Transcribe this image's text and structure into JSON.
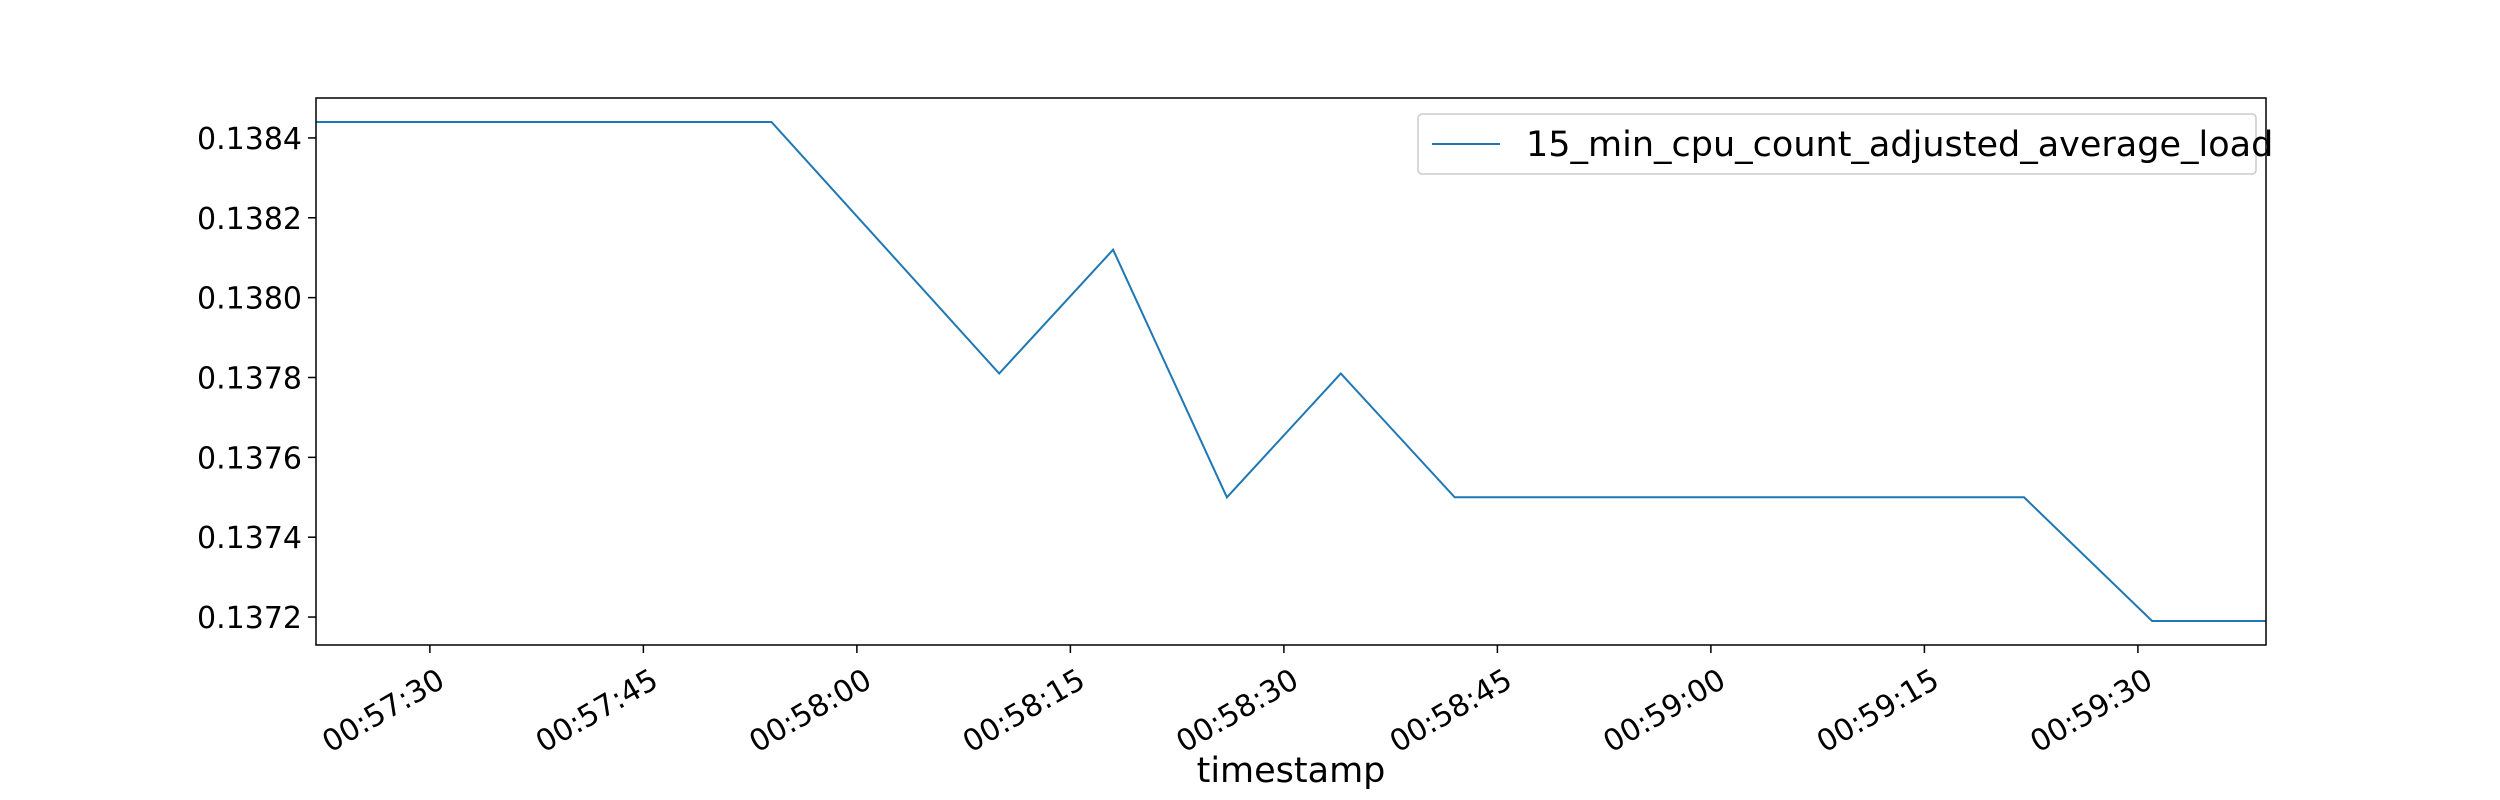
{
  "chart_data": {
    "type": "line",
    "title": "",
    "xlabel": "timestamp",
    "ylabel": "",
    "xlim": [
      "00:57:22",
      "00:59:39"
    ],
    "ylim": [
      0.13713,
      0.1385
    ],
    "x_ticks": [
      "00:57:30",
      "00:57:45",
      "00:58:00",
      "00:58:15",
      "00:58:30",
      "00:58:45",
      "00:59:00",
      "00:59:15",
      "00:59:30"
    ],
    "y_ticks": [
      "0.1372",
      "0.1374",
      "0.1376",
      "0.1378",
      "0.1380",
      "0.1382",
      "0.1384"
    ],
    "legend_position": "top-right",
    "grid": false,
    "series": [
      {
        "name": "15_min_cpu_count_adjusted_average_load",
        "color": "#1f77b4",
        "x": [
          "00:57:22",
          "00:57:54",
          "00:58:10",
          "00:58:18",
          "00:58:26",
          "00:58:34",
          "00:58:42",
          "00:59:22",
          "00:59:31",
          "00:59:39"
        ],
        "y": [
          0.13844,
          0.13844,
          0.13781,
          0.13812,
          0.1375,
          0.13781,
          0.1375,
          0.1375,
          0.13719,
          0.13719
        ]
      }
    ]
  }
}
